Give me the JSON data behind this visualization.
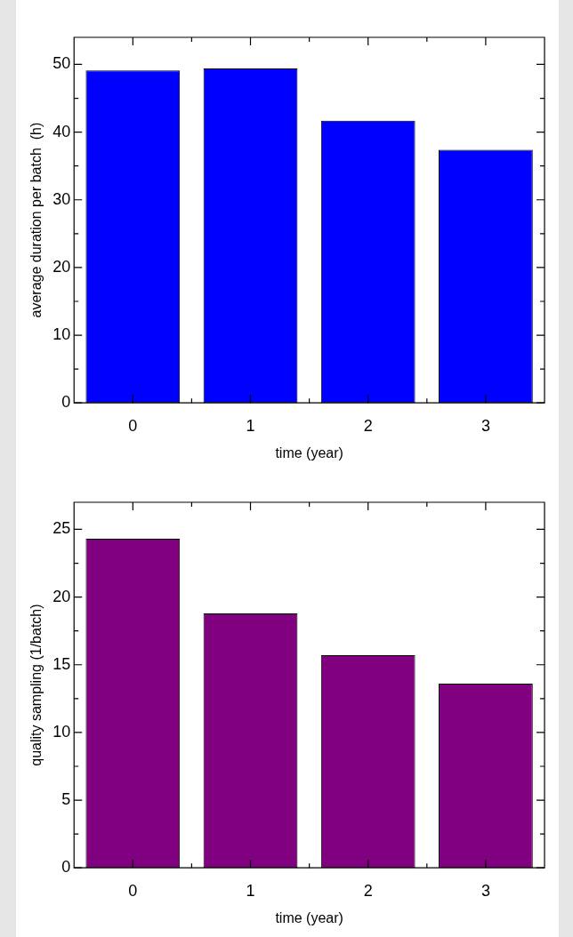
{
  "chart_data": [
    {
      "type": "bar",
      "xlabel": "time (year)",
      "ylabel": "average duration per batch  (h)",
      "categories": [
        "0",
        "1",
        "2",
        "3"
      ],
      "values": [
        49.1,
        49.4,
        41.7,
        37.4
      ],
      "color": "#0000ff",
      "ylim": [
        0,
        54
      ],
      "yticks": [
        0,
        {
          "value": 5,
          "label": null
        },
        10,
        {
          "value": 15,
          "label": null
        },
        20,
        {
          "value": 25,
          "label": null
        },
        30,
        {
          "value": 35,
          "label": null
        },
        40,
        {
          "value": 45,
          "label": null
        },
        50
      ],
      "grid": false,
      "legend": false
    },
    {
      "type": "bar",
      "xlabel": "time (year)",
      "ylabel": "quality sampling (1/batch)",
      "categories": [
        "0",
        "1",
        "2",
        "3"
      ],
      "values": [
        24.3,
        18.8,
        15.7,
        13.6
      ],
      "color": "#800080",
      "ylim": [
        0,
        27
      ],
      "yticks": [
        0,
        {
          "value": 2.5,
          "label": null
        },
        5,
        {
          "value": 7.5,
          "label": null
        },
        10,
        {
          "value": 12.5,
          "label": null
        },
        15,
        {
          "value": 17.5,
          "label": null
        },
        20,
        {
          "value": 22.5,
          "label": null
        },
        25
      ],
      "grid": false,
      "legend": false
    }
  ]
}
